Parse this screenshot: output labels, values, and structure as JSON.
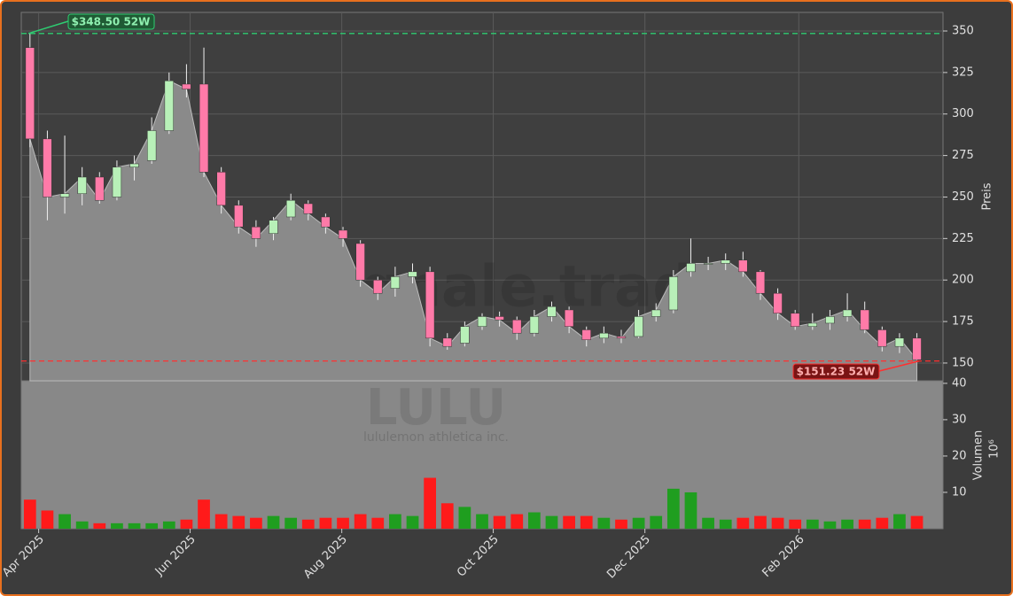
{
  "chart_data": [
    {
      "type": "candlestick",
      "watermark": "forexsignale.trade",
      "symbol": "LULU",
      "company": "lululemon athletica inc.",
      "ylabel": "Preis",
      "open": [
        340,
        285,
        250,
        252,
        262,
        250,
        268,
        272,
        290,
        318,
        318,
        265,
        245,
        232,
        228,
        238,
        246,
        238,
        230,
        222,
        200,
        195,
        202,
        205,
        165,
        162,
        172,
        178,
        176,
        168,
        178,
        182,
        170,
        165,
        166,
        166,
        178,
        182,
        205,
        210,
        210,
        212,
        205,
        192,
        180,
        172,
        174,
        178,
        182,
        170,
        160,
        165
      ],
      "high": [
        348.5,
        290,
        287,
        268,
        265,
        272,
        275,
        298,
        325,
        330,
        340,
        268,
        248,
        236,
        238,
        252,
        248,
        240,
        232,
        224,
        202,
        208,
        210,
        208,
        168,
        175,
        180,
        181,
        178,
        182,
        187,
        184,
        172,
        172,
        170,
        182,
        186,
        206,
        225,
        214,
        216,
        217,
        206,
        195,
        182,
        180,
        182,
        192,
        187,
        172,
        168,
        168
      ],
      "low": [
        280,
        236,
        240,
        245,
        246,
        248,
        260,
        270,
        288,
        310,
        262,
        240,
        228,
        220,
        224,
        236,
        236,
        228,
        220,
        196,
        188,
        190,
        198,
        160,
        158,
        160,
        170,
        172,
        164,
        166,
        175,
        168,
        160,
        162,
        162,
        165,
        175,
        180,
        202,
        206,
        206,
        202,
        188,
        176,
        170,
        170,
        170,
        175,
        168,
        157,
        156,
        151.23
      ],
      "close": [
        285,
        250,
        252,
        262,
        248,
        268,
        270,
        290,
        320,
        315,
        265,
        245,
        232,
        225,
        236,
        248,
        240,
        232,
        225,
        200,
        192,
        202,
        205,
        165,
        160,
        172,
        178,
        176,
        168,
        178,
        184,
        172,
        164,
        168,
        165,
        178,
        182,
        202,
        210,
        210,
        212,
        205,
        192,
        180,
        172,
        174,
        178,
        182,
        170,
        160,
        165,
        152
      ],
      "up_color": "#b8f0b8",
      "down_color": "#ff7aa8",
      "ylim": [
        139.3,
        361.2
      ],
      "yticks": [
        150,
        175,
        200,
        225,
        250,
        275,
        300,
        325,
        350
      ],
      "xlim": [
        0,
        53
      ],
      "annotations": [
        {
          "label": "$348.50 52W",
          "value": 348.5,
          "color": "#2ecc71"
        },
        {
          "label": "$151.23 52W",
          "value": 151.23,
          "color": "#ff3030"
        }
      ],
      "grid": true
    },
    {
      "type": "bar",
      "ylabel": "Volumen",
      "unit": "10⁶",
      "values": [
        8,
        5,
        4,
        2,
        1.5,
        1.5,
        1.5,
        1.5,
        2,
        2.5,
        8,
        4,
        3.5,
        3,
        3.5,
        3,
        2.5,
        3,
        3,
        4,
        3,
        4,
        3.5,
        14,
        7,
        6,
        4,
        3.5,
        4,
        4.5,
        3.5,
        3.5,
        3.5,
        3,
        2.5,
        3,
        3.5,
        11,
        10,
        3,
        2.5,
        3,
        3.5,
        3,
        2.5,
        2.5,
        2,
        2.5,
        2.5,
        3,
        4,
        3.5
      ],
      "up_color": "#1f9e1f",
      "down_color": "#ff1a1a",
      "ylim": [
        0,
        40.7
      ],
      "yticks": [
        10,
        20,
        30,
        40
      ],
      "xlim": [
        0,
        53
      ],
      "xticks": [
        {
          "value": 1.0,
          "label": "Apr 2025"
        },
        {
          "value": 9.71,
          "label": "Jun 2025"
        },
        {
          "value": 18.43,
          "label": "Aug 2025"
        },
        {
          "value": 27.14,
          "label": "Oct 2025"
        },
        {
          "value": 35.86,
          "label": "Dec 2025"
        },
        {
          "value": 44.71,
          "label": "Feb 2026"
        }
      ]
    }
  ]
}
